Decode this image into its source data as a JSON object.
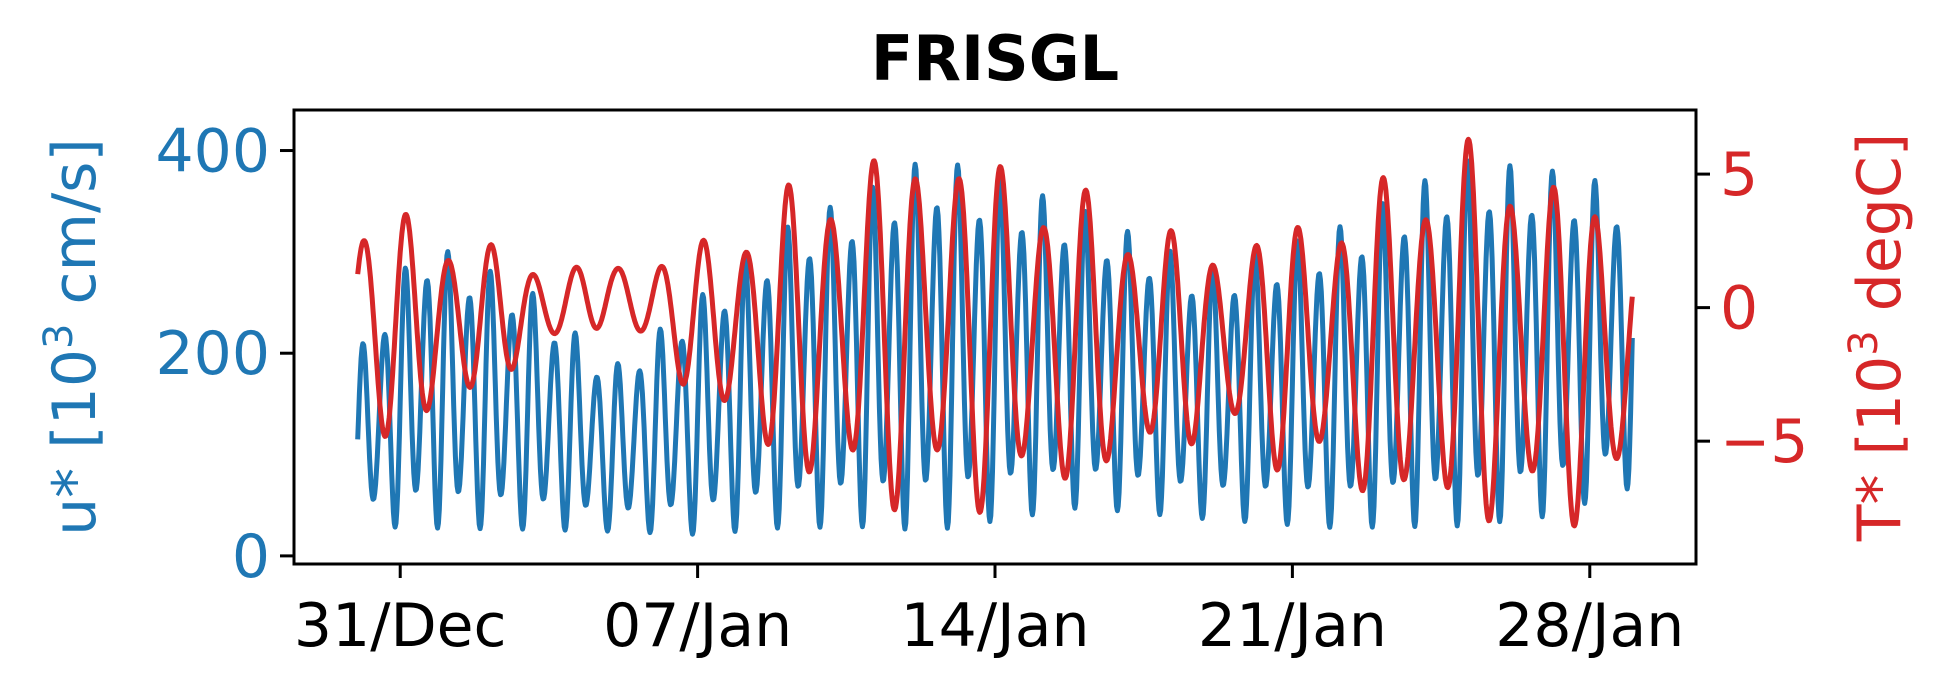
{
  "chart_data": {
    "type": "line",
    "title": "FRISGL",
    "x_ticks": [
      "31/Dec",
      "07/Jan",
      "14/Jan",
      "21/Jan",
      "28/Jan"
    ],
    "x_tick_days": [
      0,
      7,
      14,
      21,
      28
    ],
    "xlim": [
      -2.5,
      30.5
    ],
    "y_left": {
      "label_prefix": "u* [10",
      "label_exp": "3",
      "label_suffix": " cm/s]",
      "ticks": [
        "0",
        "200",
        "400"
      ],
      "tick_values": [
        0,
        200,
        400
      ],
      "ylim": [
        -8,
        440
      ],
      "color": "#1f77b4"
    },
    "y_right": {
      "label_prefix": "T* [10",
      "label_exp": "3",
      "label_suffix": " degC]",
      "ticks": [
        "5",
        "0",
        "−5"
      ],
      "tick_values": [
        5,
        0,
        -5
      ],
      "ylim": [
        -9.6,
        7.4
      ],
      "color": "#d62728"
    },
    "series": [
      {
        "axis": "left",
        "color": "#1f77b4",
        "x_start": -1.0,
        "x_end": 29.0,
        "envelope": [
          [
            -1.0,
            205,
            25
          ],
          [
            0.5,
            320,
            20
          ],
          [
            3,
            270,
            20
          ],
          [
            5,
            190,
            20
          ],
          [
            7,
            260,
            15
          ],
          [
            9,
            330,
            20
          ],
          [
            11,
            370,
            20
          ],
          [
            12.5,
            405,
            15
          ],
          [
            16,
            350,
            40
          ],
          [
            19,
            290,
            30
          ],
          [
            22,
            330,
            20
          ],
          [
            25,
            400,
            20
          ],
          [
            27,
            390,
            30
          ],
          [
            29,
            370,
            60
          ]
        ],
        "period_days": 0.5
      },
      {
        "axis": "right",
        "color": "#d62728",
        "x_start": -1.0,
        "x_end": 29.0,
        "envelope": [
          [
            -1.0,
            4.0,
            -5.5
          ],
          [
            1,
            3.2,
            -4.5
          ],
          [
            3,
            1.8,
            -2.0
          ],
          [
            5,
            1.6,
            -0.5
          ],
          [
            7,
            2.5,
            -3.5
          ],
          [
            9,
            4.5,
            -6.5
          ],
          [
            11,
            6.0,
            -7.5
          ],
          [
            13,
            6.5,
            -8.0
          ],
          [
            16,
            4.5,
            -7.0
          ],
          [
            19,
            2.5,
            -5.0
          ],
          [
            22,
            4.0,
            -7.0
          ],
          [
            25,
            6.5,
            -8.5
          ],
          [
            27,
            5.5,
            -8.5
          ],
          [
            29,
            3.5,
            -7.5
          ]
        ],
        "period_days": 1.0
      }
    ],
    "grid": false,
    "legend": "none"
  }
}
